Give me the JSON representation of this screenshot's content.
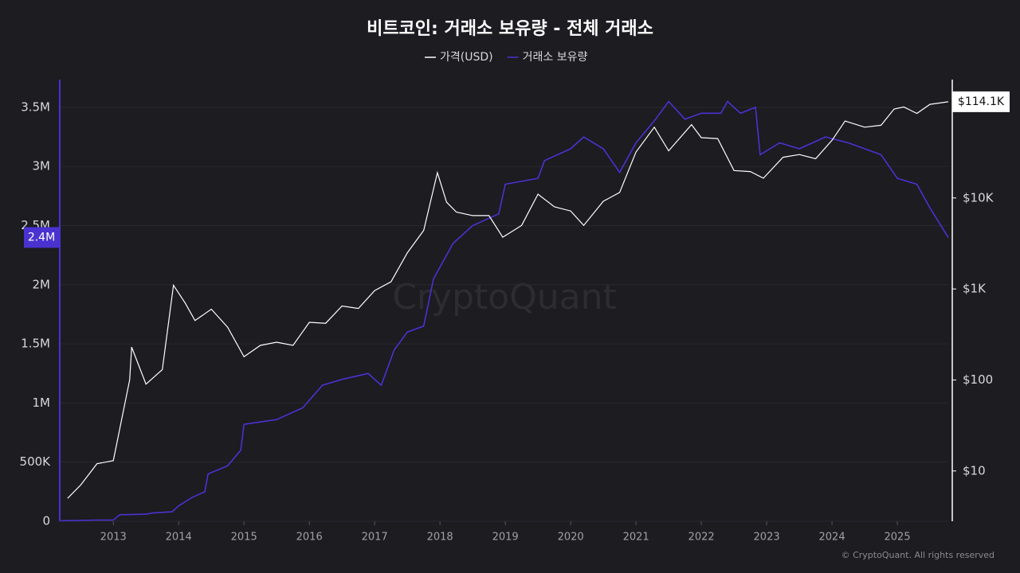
{
  "chart_data": {
    "type": "line",
    "title": "비트코인: 거래소 보유량 - 전체 거래소",
    "watermark": "CryptoQuant",
    "footer": "© CryptoQuant. All rights reserved",
    "xlim": [
      2012.18,
      2025.78
    ],
    "xticks": [
      2013,
      2014,
      2015,
      2016,
      2017,
      2018,
      2019,
      2020,
      2021,
      2022,
      2023,
      2024,
      2025
    ],
    "ylim": [
      0,
      3735000
    ],
    "yticks": [
      0,
      {
        "value": 500000,
        "label": "500K"
      },
      {
        "value": 1000000,
        "label": "1M"
      },
      {
        "value": 1500000,
        "label": "1.5M"
      },
      {
        "value": 2000000,
        "label": "2M"
      },
      {
        "value": 2500000,
        "label": "2.5M"
      },
      {
        "value": 3000000,
        "label": "3M"
      },
      {
        "value": 3500000,
        "label": "3.5M"
      }
    ],
    "y2lim": [
      2.8,
      200000
    ],
    "y2log": true,
    "y2ticks": [
      {
        "value": 10,
        "label": "$10"
      },
      {
        "value": 100,
        "label": "$100"
      },
      {
        "value": 1000,
        "label": "$1K"
      },
      {
        "value": 10000,
        "label": "$10K"
      }
    ],
    "grid": true,
    "series": [
      {
        "name": "가격(USD)",
        "color": "#ffffff",
        "axis": "y2",
        "x": [
          2012.3,
          2012.5,
          2012.75,
          2013.0,
          2013.25,
          2013.28,
          2013.5,
          2013.75,
          2013.92,
          2014.1,
          2014.25,
          2014.5,
          2014.75,
          2015.0,
          2015.25,
          2015.5,
          2015.75,
          2016.0,
          2016.25,
          2016.5,
          2016.75,
          2017.0,
          2017.25,
          2017.5,
          2017.75,
          2017.96,
          2018.1,
          2018.25,
          2018.5,
          2018.75,
          2018.96,
          2019.25,
          2019.5,
          2019.75,
          2020.0,
          2020.2,
          2020.5,
          2020.75,
          2021.0,
          2021.28,
          2021.5,
          2021.85,
          2022.0,
          2022.25,
          2022.5,
          2022.75,
          2022.95,
          2023.25,
          2023.5,
          2023.75,
          2024.0,
          2024.2,
          2024.5,
          2024.75,
          2024.95,
          2025.1,
          2025.3,
          2025.5,
          2025.78
        ],
        "values": [
          5,
          7,
          12,
          13,
          100,
          230,
          90,
          130,
          1100,
          700,
          450,
          600,
          380,
          180,
          240,
          260,
          240,
          430,
          420,
          650,
          610,
          960,
          1200,
          2500,
          4400,
          19000,
          9000,
          7000,
          6400,
          6400,
          3700,
          5000,
          11000,
          8000,
          7200,
          5000,
          9200,
          11500,
          32000,
          60000,
          33000,
          64000,
          46000,
          45000,
          20000,
          19500,
          16500,
          28000,
          30000,
          27000,
          43000,
          70000,
          60000,
          63000,
          95000,
          100000,
          85000,
          107000,
          114100
        ],
        "value_labels": [
          null,
          null,
          null,
          null,
          null,
          null,
          null,
          null,
          null,
          null,
          null,
          null,
          null,
          null,
          null,
          null,
          null,
          null,
          null,
          null,
          null,
          null,
          null,
          null,
          null,
          null,
          null,
          null,
          null,
          null,
          null,
          null,
          null,
          null,
          null,
          null,
          null,
          null,
          null,
          null,
          null,
          null,
          null,
          null,
          null,
          null,
          null,
          null,
          null,
          null,
          null,
          null,
          null,
          null,
          null,
          null,
          null,
          null,
          "$114.1K"
        ]
      },
      {
        "name": "거래소 보유량",
        "color": "#4a32d0",
        "x": [
          2012.2,
          2012.75,
          2013.0,
          2013.1,
          2013.5,
          2013.6,
          2013.9,
          2014.0,
          2014.2,
          2014.4,
          2014.45,
          2014.75,
          2014.95,
          2015.0,
          2015.5,
          2015.9,
          2016.2,
          2016.5,
          2016.9,
          2017.1,
          2017.3,
          2017.5,
          2017.75,
          2017.9,
          2018.2,
          2018.5,
          2018.9,
          2019.0,
          2019.5,
          2019.6,
          2020.0,
          2020.2,
          2020.5,
          2020.75,
          2021.0,
          2021.3,
          2021.5,
          2021.75,
          2022.0,
          2022.3,
          2022.4,
          2022.6,
          2022.83,
          2022.9,
          2023.2,
          2023.5,
          2023.9,
          2024.25,
          2024.75,
          2025.0,
          2025.3,
          2025.5,
          2025.78
        ],
        "values": [
          5000,
          10000,
          10000,
          55000,
          60000,
          70000,
          80000,
          130000,
          200000,
          250000,
          400000,
          470000,
          600000,
          820000,
          860000,
          960000,
          1150000,
          1200000,
          1250000,
          1150000,
          1450000,
          1600000,
          1650000,
          2050000,
          2350000,
          2500000,
          2600000,
          2850000,
          2900000,
          3050000,
          3150000,
          3250000,
          3150000,
          2950000,
          3200000,
          3400000,
          3550000,
          3400000,
          3450000,
          3450000,
          3550000,
          3450000,
          3500000,
          3100000,
          3200000,
          3150000,
          3250000,
          3200000,
          3100000,
          2900000,
          2850000,
          2650000,
          2400000
        ],
        "value_labels": [
          null,
          null,
          null,
          null,
          null,
          null,
          null,
          null,
          null,
          null,
          null,
          null,
          null,
          null,
          null,
          null,
          null,
          null,
          null,
          null,
          null,
          null,
          null,
          null,
          null,
          null,
          null,
          null,
          null,
          null,
          null,
          null,
          null,
          null,
          null,
          null,
          null,
          null,
          null,
          null,
          null,
          null,
          null,
          null,
          null,
          null,
          null,
          null,
          null,
          null,
          null,
          null,
          "2.4M"
        ]
      }
    ]
  }
}
